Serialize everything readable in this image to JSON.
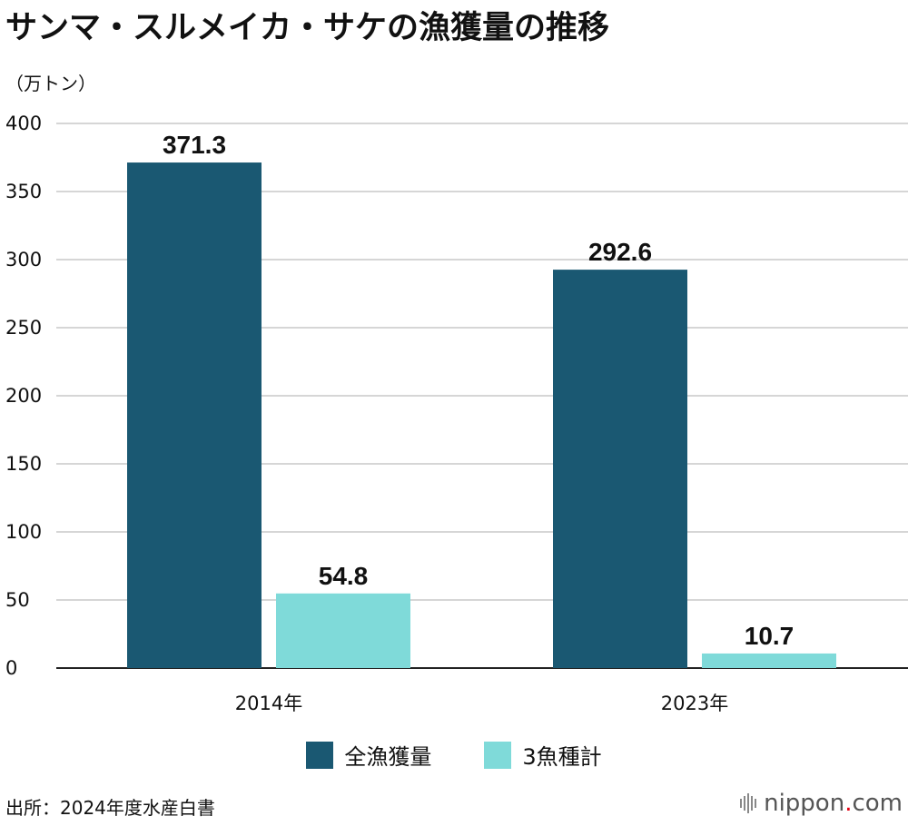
{
  "header": {
    "title": "サンマ・スルメイカ・サケの漁獲量の推移",
    "unit": "（万トン）"
  },
  "colors": {
    "series1": "#1a5872",
    "series2": "#7fdad9",
    "grid": "#c8c8c8",
    "axis": "#222222"
  },
  "chart_data": {
    "type": "bar",
    "title": "サンマ・スルメイカ・サケの漁獲量の推移",
    "ylabel": "（万トン）",
    "xlabel": "",
    "categories": [
      "2014年",
      "2023年"
    ],
    "ylim": [
      0,
      400
    ],
    "yticks": [
      0,
      50,
      100,
      150,
      200,
      250,
      300,
      350,
      400
    ],
    "grid": true,
    "legend": "bottom",
    "series": [
      {
        "name": "全漁獲量",
        "values": [
          371.3,
          292.6
        ],
        "labels": [
          "371.3",
          "292.6"
        ]
      },
      {
        "name": "3魚種計",
        "values": [
          54.8,
          10.7
        ],
        "labels": [
          "54.8",
          "10.7"
        ]
      }
    ]
  },
  "footer": {
    "source": "出所：2024年度水産白書",
    "logo_main": "nippon",
    "logo_dot": ".",
    "logo_tld": "com"
  }
}
